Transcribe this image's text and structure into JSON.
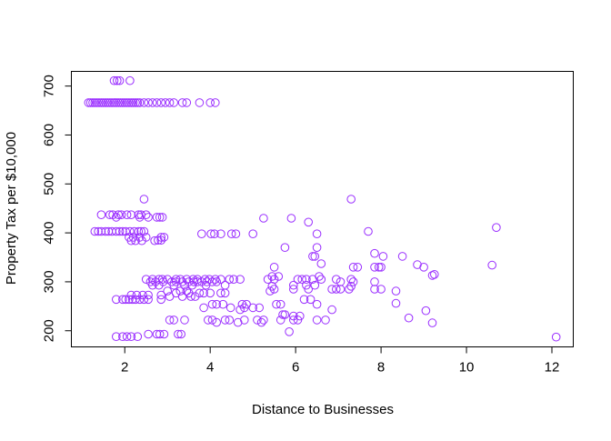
{
  "chart_data": {
    "type": "scatter",
    "title": "",
    "xlabel": "Distance to Businesses",
    "ylabel": "Property Tax per $10,000",
    "xlim": [
      0.75,
      12.5
    ],
    "ylim": [
      167,
      730
    ],
    "xticks": [
      2,
      4,
      6,
      8,
      10,
      12
    ],
    "yticks": [
      200,
      300,
      400,
      500,
      600,
      700
    ],
    "grid": false,
    "legend": "none",
    "marker": "open-circle",
    "color": "#9b30ff",
    "points": [
      [
        1.75,
        711
      ],
      [
        1.82,
        711
      ],
      [
        1.88,
        711
      ],
      [
        2.12,
        711
      ],
      [
        1.15,
        666
      ],
      [
        1.2,
        666
      ],
      [
        1.25,
        666
      ],
      [
        1.3,
        666
      ],
      [
        1.35,
        666
      ],
      [
        1.4,
        666
      ],
      [
        1.45,
        666
      ],
      [
        1.5,
        666
      ],
      [
        1.55,
        666
      ],
      [
        1.6,
        666
      ],
      [
        1.65,
        666
      ],
      [
        1.7,
        666
      ],
      [
        1.75,
        666
      ],
      [
        1.8,
        666
      ],
      [
        1.85,
        666
      ],
      [
        1.9,
        666
      ],
      [
        1.95,
        666
      ],
      [
        2.0,
        666
      ],
      [
        2.05,
        666
      ],
      [
        2.1,
        666
      ],
      [
        2.15,
        666
      ],
      [
        2.2,
        666
      ],
      [
        2.25,
        666
      ],
      [
        2.3,
        666
      ],
      [
        2.35,
        666
      ],
      [
        2.45,
        666
      ],
      [
        2.55,
        666
      ],
      [
        2.65,
        666
      ],
      [
        2.75,
        666
      ],
      [
        2.85,
        666
      ],
      [
        2.95,
        666
      ],
      [
        3.05,
        666
      ],
      [
        3.15,
        666
      ],
      [
        3.35,
        666
      ],
      [
        3.45,
        666
      ],
      [
        3.75,
        666
      ],
      [
        4.0,
        666
      ],
      [
        4.12,
        666
      ],
      [
        2.45,
        469
      ],
      [
        1.45,
        437
      ],
      [
        1.65,
        437
      ],
      [
        1.72,
        437
      ],
      [
        1.85,
        437
      ],
      [
        1.92,
        437
      ],
      [
        2.05,
        437
      ],
      [
        2.15,
        437
      ],
      [
        2.32,
        437
      ],
      [
        2.38,
        437
      ],
      [
        2.5,
        437
      ],
      [
        1.8,
        432
      ],
      [
        2.55,
        432
      ],
      [
        2.75,
        432
      ],
      [
        2.82,
        432
      ],
      [
        2.88,
        432
      ],
      [
        2.35,
        432
      ],
      [
        1.3,
        403
      ],
      [
        1.38,
        403
      ],
      [
        1.45,
        403
      ],
      [
        1.55,
        403
      ],
      [
        1.62,
        403
      ],
      [
        1.7,
        403
      ],
      [
        1.8,
        403
      ],
      [
        1.88,
        403
      ],
      [
        1.95,
        403
      ],
      [
        2.02,
        403
      ],
      [
        2.12,
        403
      ],
      [
        2.22,
        403
      ],
      [
        2.32,
        403
      ],
      [
        2.38,
        403
      ],
      [
        2.45,
        403
      ],
      [
        2.1,
        391
      ],
      [
        2.2,
        391
      ],
      [
        2.35,
        391
      ],
      [
        2.5,
        391
      ],
      [
        2.85,
        391
      ],
      [
        2.92,
        391
      ],
      [
        2.78,
        385
      ],
      [
        2.85,
        385
      ],
      [
        2.15,
        384
      ],
      [
        2.25,
        384
      ],
      [
        2.4,
        384
      ],
      [
        2.7,
        384
      ],
      [
        3.8,
        398
      ],
      [
        4.02,
        398
      ],
      [
        4.1,
        398
      ],
      [
        4.25,
        398
      ],
      [
        4.5,
        398
      ],
      [
        4.6,
        398
      ],
      [
        5.0,
        398
      ],
      [
        2.5,
        305
      ],
      [
        2.65,
        305
      ],
      [
        2.8,
        305
      ],
      [
        2.88,
        305
      ],
      [
        3.0,
        305
      ],
      [
        3.2,
        305
      ],
      [
        3.3,
        305
      ],
      [
        3.45,
        305
      ],
      [
        3.6,
        305
      ],
      [
        3.7,
        305
      ],
      [
        3.88,
        305
      ],
      [
        3.98,
        305
      ],
      [
        4.12,
        305
      ],
      [
        4.25,
        305
      ],
      [
        4.45,
        305
      ],
      [
        4.55,
        305
      ],
      [
        4.7,
        305
      ],
      [
        2.6,
        300
      ],
      [
        2.72,
        300
      ],
      [
        2.9,
        300
      ],
      [
        3.1,
        300
      ],
      [
        3.2,
        300
      ],
      [
        3.35,
        300
      ],
      [
        3.5,
        300
      ],
      [
        3.62,
        300
      ],
      [
        3.7,
        300
      ],
      [
        3.8,
        300
      ],
      [
        3.92,
        300
      ],
      [
        4.05,
        300
      ],
      [
        4.15,
        300
      ],
      [
        2.65,
        293
      ],
      [
        2.8,
        293
      ],
      [
        3.15,
        293
      ],
      [
        3.4,
        293
      ],
      [
        3.58,
        293
      ],
      [
        3.9,
        293
      ],
      [
        4.35,
        293
      ],
      [
        3.0,
        281
      ],
      [
        3.3,
        281
      ],
      [
        3.45,
        281
      ],
      [
        3.5,
        277
      ],
      [
        3.75,
        277
      ],
      [
        3.85,
        277
      ],
      [
        4.0,
        277
      ],
      [
        4.25,
        277
      ],
      [
        4.35,
        277
      ],
      [
        3.2,
        277
      ],
      [
        2.15,
        273
      ],
      [
        2.28,
        273
      ],
      [
        2.42,
        273
      ],
      [
        2.55,
        273
      ],
      [
        2.85,
        273
      ],
      [
        3.05,
        270
      ],
      [
        3.35,
        270
      ],
      [
        3.55,
        270
      ],
      [
        3.65,
        270
      ],
      [
        1.8,
        264
      ],
      [
        1.95,
        264
      ],
      [
        2.02,
        264
      ],
      [
        2.1,
        264
      ],
      [
        2.18,
        264
      ],
      [
        2.25,
        264
      ],
      [
        2.35,
        264
      ],
      [
        2.45,
        264
      ],
      [
        2.55,
        264
      ],
      [
        2.85,
        264
      ],
      [
        4.05,
        254
      ],
      [
        4.15,
        254
      ],
      [
        4.3,
        254
      ],
      [
        4.75,
        254
      ],
      [
        4.85,
        254
      ],
      [
        3.85,
        247
      ],
      [
        4.48,
        247
      ],
      [
        4.7,
        243
      ],
      [
        4.8,
        247
      ],
      [
        5.0,
        247
      ],
      [
        5.15,
        247
      ],
      [
        3.05,
        222
      ],
      [
        3.15,
        222
      ],
      [
        3.4,
        222
      ],
      [
        3.95,
        222
      ],
      [
        4.05,
        222
      ],
      [
        4.15,
        217
      ],
      [
        4.35,
        222
      ],
      [
        4.45,
        222
      ],
      [
        4.65,
        217
      ],
      [
        4.8,
        222
      ],
      [
        5.1,
        222
      ],
      [
        5.2,
        217
      ],
      [
        5.25,
        222
      ],
      [
        2.55,
        193
      ],
      [
        2.75,
        193
      ],
      [
        2.82,
        193
      ],
      [
        2.92,
        193
      ],
      [
        3.25,
        193
      ],
      [
        3.32,
        193
      ],
      [
        1.8,
        188
      ],
      [
        1.95,
        188
      ],
      [
        2.05,
        188
      ],
      [
        2.15,
        188
      ],
      [
        2.3,
        188
      ],
      [
        5.25,
        430
      ],
      [
        5.9,
        430
      ],
      [
        6.3,
        422
      ],
      [
        5.75,
        370
      ],
      [
        6.5,
        398
      ],
      [
        6.5,
        370
      ],
      [
        6.4,
        352
      ],
      [
        6.45,
        352
      ],
      [
        6.6,
        337
      ],
      [
        7.3,
        469
      ],
      [
        7.35,
        330
      ],
      [
        7.45,
        330
      ],
      [
        7.7,
        403
      ],
      [
        7.85,
        358
      ],
      [
        8.05,
        352
      ],
      [
        8.5,
        352
      ],
      [
        8.85,
        335
      ],
      [
        9.0,
        330
      ],
      [
        9.2,
        313
      ],
      [
        9.25,
        315
      ],
      [
        10.6,
        334
      ],
      [
        10.7,
        411
      ],
      [
        5.5,
        330
      ],
      [
        5.35,
        305
      ],
      [
        5.5,
        305
      ],
      [
        5.6,
        311
      ],
      [
        5.45,
        311
      ],
      [
        6.05,
        305
      ],
      [
        6.15,
        305
      ],
      [
        6.25,
        305
      ],
      [
        6.4,
        305
      ],
      [
        6.55,
        311
      ],
      [
        6.6,
        305
      ],
      [
        6.95,
        305
      ],
      [
        7.05,
        300
      ],
      [
        7.3,
        305
      ],
      [
        7.35,
        300
      ],
      [
        7.85,
        330
      ],
      [
        7.95,
        330
      ],
      [
        7.85,
        300
      ],
      [
        8.0,
        330
      ],
      [
        5.45,
        291
      ],
      [
        5.5,
        285
      ],
      [
        5.4,
        281
      ],
      [
        5.95,
        285
      ],
      [
        5.95,
        293
      ],
      [
        6.25,
        293
      ],
      [
        6.45,
        293
      ],
      [
        6.3,
        285
      ],
      [
        6.85,
        285
      ],
      [
        6.95,
        285
      ],
      [
        7.05,
        285
      ],
      [
        7.25,
        285
      ],
      [
        7.3,
        291
      ],
      [
        7.85,
        285
      ],
      [
        8.0,
        285
      ],
      [
        8.35,
        281
      ],
      [
        6.2,
        264
      ],
      [
        6.35,
        264
      ],
      [
        5.55,
        254
      ],
      [
        5.65,
        254
      ],
      [
        6.5,
        254
      ],
      [
        6.85,
        243
      ],
      [
        8.35,
        256
      ],
      [
        5.7,
        233
      ],
      [
        5.75,
        233
      ],
      [
        5.95,
        230
      ],
      [
        6.1,
        230
      ],
      [
        5.65,
        222
      ],
      [
        5.95,
        222
      ],
      [
        6.05,
        222
      ],
      [
        6.5,
        222
      ],
      [
        6.7,
        222
      ],
      [
        8.65,
        226
      ],
      [
        9.05,
        241
      ],
      [
        9.2,
        216
      ],
      [
        5.85,
        198
      ],
      [
        12.1,
        187
      ]
    ]
  }
}
